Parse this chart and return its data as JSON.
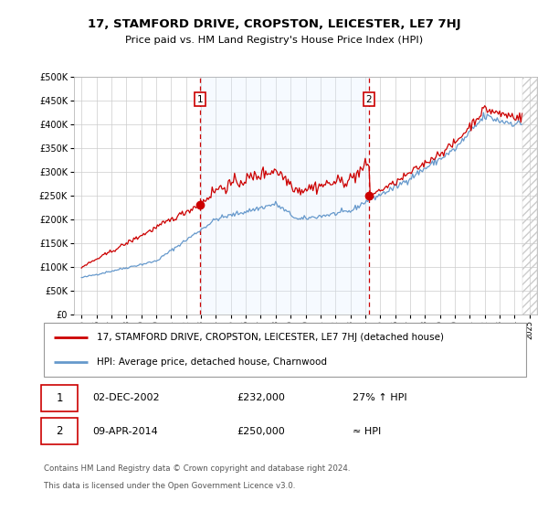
{
  "title": "17, STAMFORD DRIVE, CROPSTON, LEICESTER, LE7 7HJ",
  "subtitle": "Price paid vs. HM Land Registry's House Price Index (HPI)",
  "sale1_date": "02-DEC-2002",
  "sale1_price": 232000,
  "sale1_label": "27% ↑ HPI",
  "sale2_date": "09-APR-2014",
  "sale2_price": 250000,
  "sale2_label": "≈ HPI",
  "legend_line1": "17, STAMFORD DRIVE, CROPSTON, LEICESTER, LE7 7HJ (detached house)",
  "legend_line2": "HPI: Average price, detached house, Charnwood",
  "footer1": "Contains HM Land Registry data © Crown copyright and database right 2024.",
  "footer2": "This data is licensed under the Open Government Licence v3.0.",
  "line_color_red": "#cc0000",
  "line_color_blue": "#6699cc",
  "shade_color": "#ddeeff",
  "dashed_line_color": "#cc0000",
  "dashed_line2_color": "#cc0000",
  "background_color": "#ffffff",
  "grid_color": "#cccccc",
  "ylim_min": 0,
  "ylim_max": 500000,
  "ytick_step": 50000,
  "sale1_x": 2002.917,
  "sale2_x": 2014.25,
  "xlim_min": 1994.5,
  "xlim_max": 2025.5
}
